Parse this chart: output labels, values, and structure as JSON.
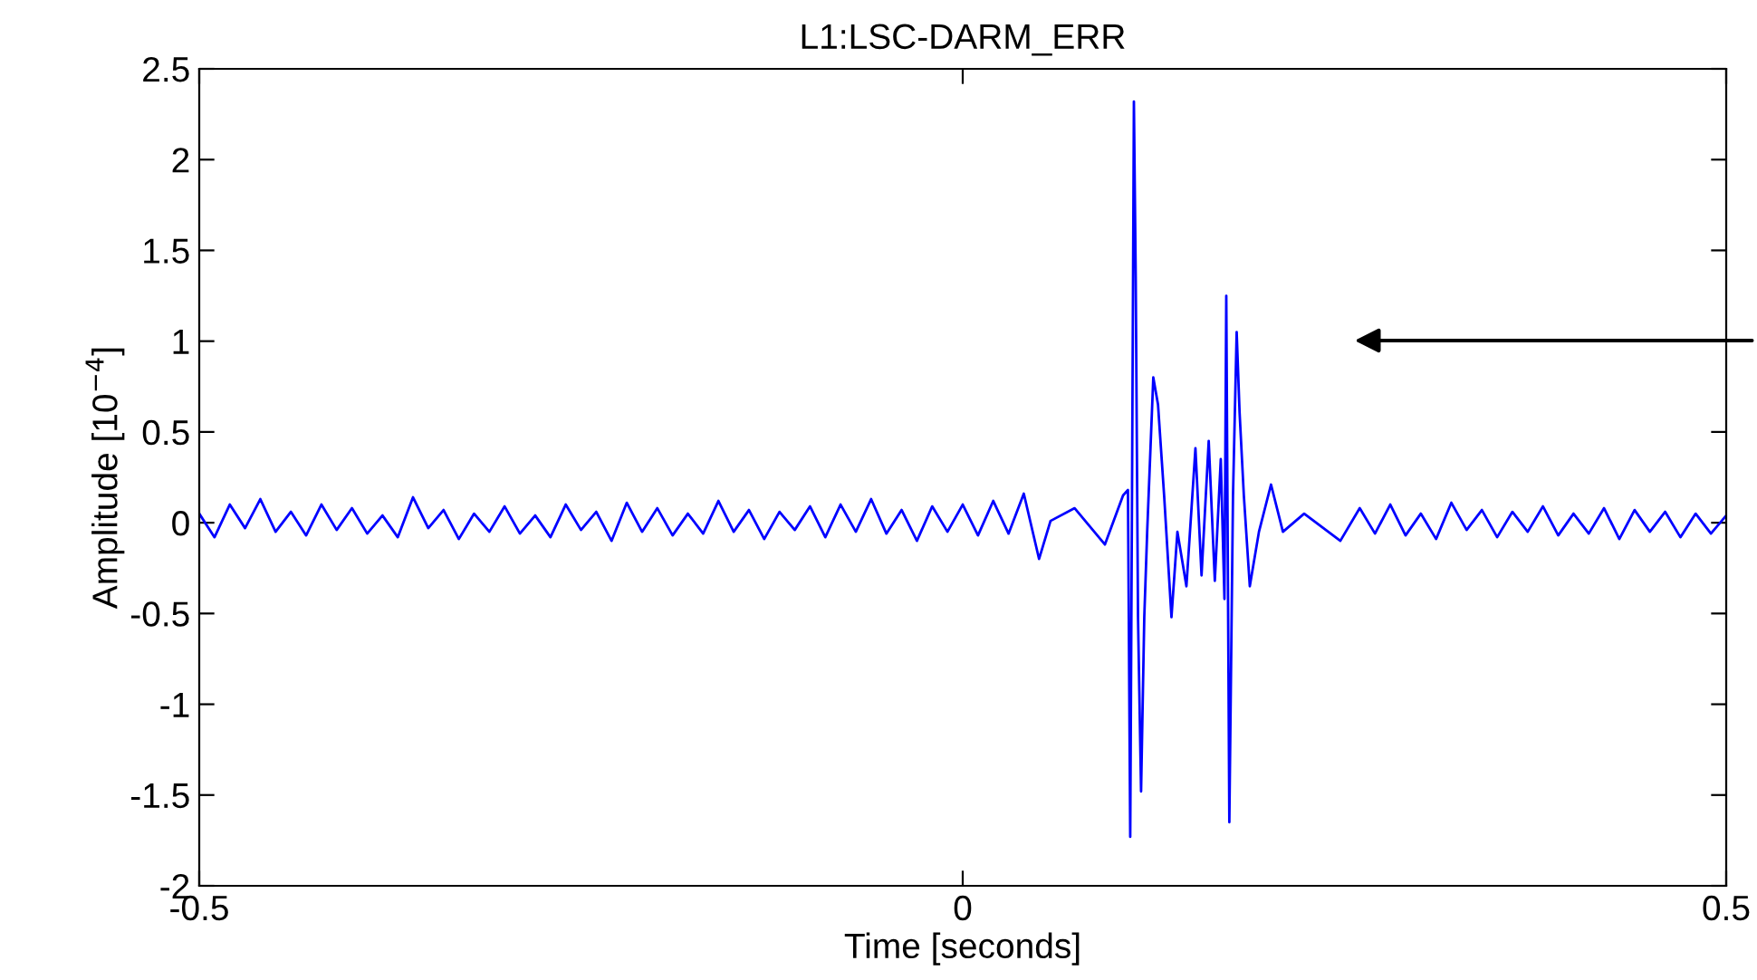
{
  "chart_data": {
    "type": "line",
    "title": "L1:LSC-DARM_ERR",
    "xlabel": "Time [seconds]",
    "ylabel": "Amplitude [10$^{−4}$]",
    "xlim": [
      -0.5,
      0.5
    ],
    "xticks": [
      -0.5,
      0,
      0.5
    ],
    "ylim": [
      -2,
      2.5
    ],
    "yticks": [
      -2,
      -1.5,
      -1,
      -0.5,
      0,
      0.5,
      1,
      1.5,
      2,
      2.5
    ],
    "grid": false,
    "marker": "none",
    "line_style": "solid",
    "series": [
      {
        "color": "#0000ff",
        "x": [
          -0.5,
          -0.49,
          -0.48,
          -0.47,
          -0.46,
          -0.45,
          -0.44,
          -0.43,
          -0.42,
          -0.41,
          -0.4,
          -0.39,
          -0.38,
          -0.37,
          -0.36,
          -0.35,
          -0.34,
          -0.33,
          -0.32,
          -0.31,
          -0.3,
          -0.29,
          -0.28,
          -0.27,
          -0.26,
          -0.25,
          -0.24,
          -0.23,
          -0.22,
          -0.21,
          -0.2,
          -0.19,
          -0.18,
          -0.17,
          -0.16,
          -0.15,
          -0.14,
          -0.13,
          -0.12,
          -0.11,
          -0.1,
          -0.09,
          -0.08,
          -0.07,
          -0.06,
          -0.05,
          -0.04,
          -0.03,
          -0.02,
          -0.01,
          0,
          0.01,
          0.02,
          0.03,
          0.04,
          0.05,
          0.0575,
          0.0733,
          0.0931,
          0.105,
          0.1082,
          0.1097,
          0.1109,
          0.1121,
          0.1133,
          0.1148,
          0.1168,
          0.1189,
          0.1208,
          0.1248,
          0.1279,
          0.1319,
          0.1367,
          0.1406,
          0.1465,
          0.1524,
          0.1564,
          0.1611,
          0.1651,
          0.169,
          0.1714,
          0.1726,
          0.1746,
          0.177,
          0.1794,
          0.1813,
          0.1841,
          0.188,
          0.194,
          0.2019,
          0.2097,
          0.2236,
          0.2473,
          0.26,
          0.27,
          0.28,
          0.29,
          0.3,
          0.31,
          0.32,
          0.33,
          0.34,
          0.35,
          0.36,
          0.37,
          0.38,
          0.39,
          0.4,
          0.41,
          0.42,
          0.43,
          0.44,
          0.45,
          0.46,
          0.47,
          0.48,
          0.49,
          0.5
        ],
        "values": [
          0.05,
          -0.08,
          0.1,
          -0.03,
          0.13,
          -0.05,
          0.06,
          -0.07,
          0.1,
          -0.04,
          0.08,
          -0.06,
          0.04,
          -0.08,
          0.14,
          -0.03,
          0.07,
          -0.09,
          0.05,
          -0.05,
          0.09,
          -0.06,
          0.04,
          -0.08,
          0.1,
          -0.04,
          0.06,
          -0.1,
          0.11,
          -0.05,
          0.08,
          -0.07,
          0.05,
          -0.06,
          0.12,
          -0.05,
          0.07,
          -0.09,
          0.06,
          -0.04,
          0.09,
          -0.08,
          0.1,
          -0.05,
          0.13,
          -0.06,
          0.07,
          -0.1,
          0.09,
          -0.05,
          0.1,
          -0.07,
          0.12,
          -0.06,
          0.16,
          -0.2,
          0.01,
          0.08,
          -0.12,
          0.15,
          0.18,
          -1.73,
          0.21,
          2.32,
          1.35,
          -0.52,
          -1.48,
          -0.52,
          -0.05,
          0.8,
          0.65,
          0.15,
          -0.52,
          -0.05,
          -0.35,
          0.41,
          -0.29,
          0.45,
          -0.32,
          0.35,
          -0.42,
          1.25,
          -1.65,
          0.15,
          1.05,
          0.61,
          0.15,
          -0.35,
          -0.05,
          0.21,
          -0.05,
          0.05,
          -0.1,
          0.08,
          -0.06,
          0.1,
          -0.07,
          0.05,
          -0.09,
          0.11,
          -0.04,
          0.07,
          -0.08,
          0.06,
          -0.05,
          0.09,
          -0.07,
          0.05,
          -0.06,
          0.08,
          -0.09,
          0.07,
          -0.05,
          0.06,
          -0.08,
          0.05,
          -0.06,
          0.04
        ]
      }
    ]
  }
}
